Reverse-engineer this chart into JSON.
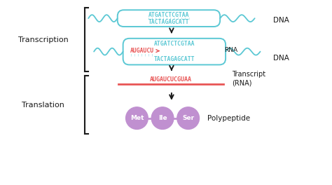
{
  "bg_color": "#ffffff",
  "cyan": "#5bc8d4",
  "red": "#e85555",
  "purple": "#c090d0",
  "black": "#1a1a1a",
  "transcription_label": "Transcription",
  "translation_label": "Translation",
  "dna_label": "DNA",
  "rna_label": "RNA",
  "transcript_label": "Transcript\n(RNA)",
  "polypeptide_label": "Polypeptide",
  "dna_top": "ATGATCTCGTAA",
  "dna_bottom": "TACTAGAGCATT",
  "rna_seq": "AUGAUCU",
  "transcript_seq": "AUGAUCUCGUAA",
  "amino_acids": [
    "Met",
    "Ile",
    "Ser"
  ],
  "figsize": [
    4.74,
    2.64
  ],
  "dpi": 100
}
